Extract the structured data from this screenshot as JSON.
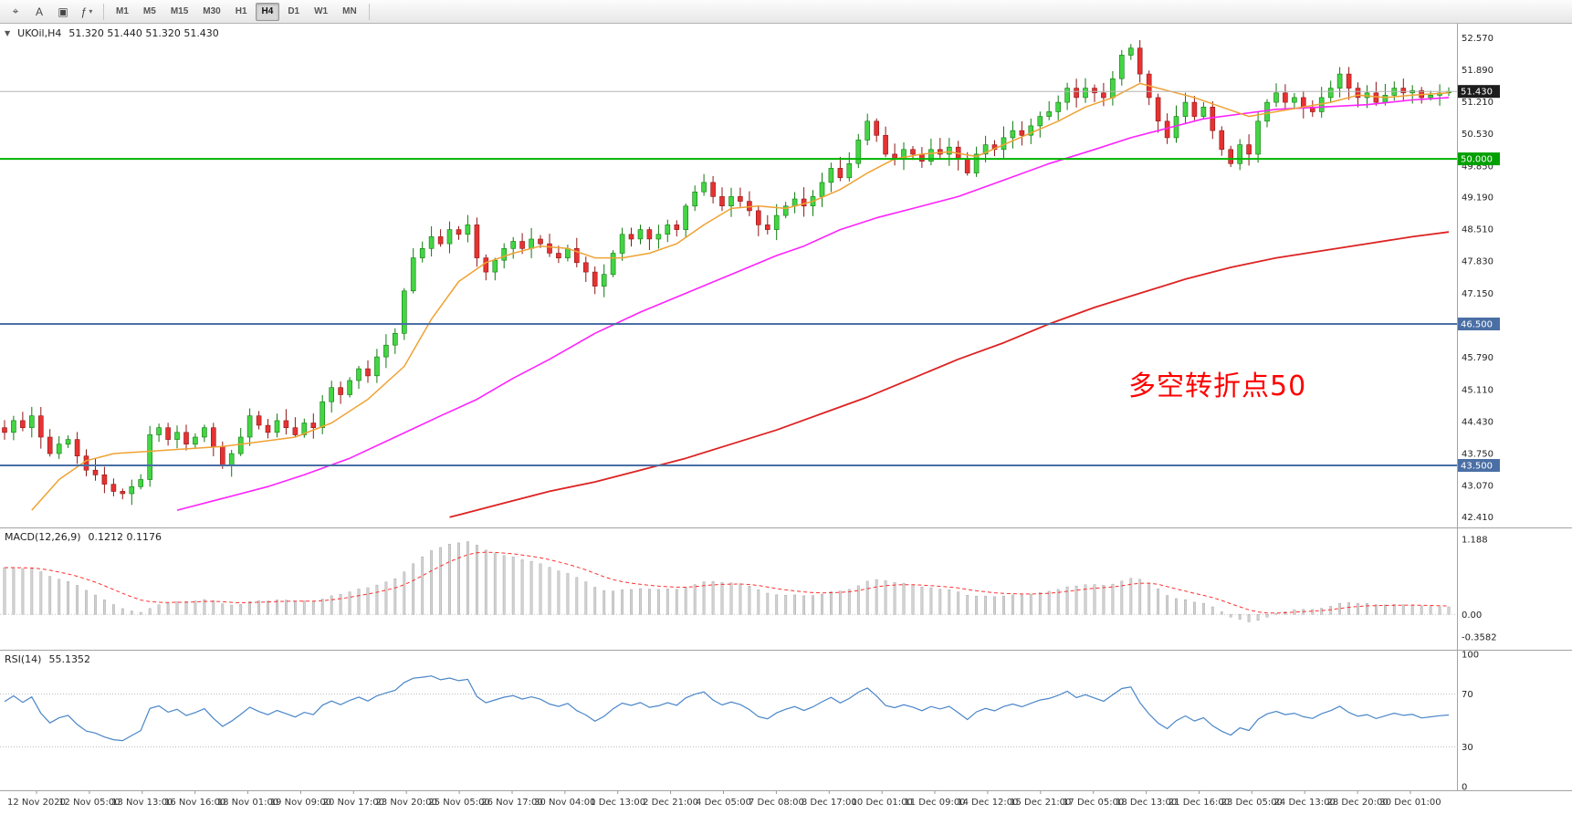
{
  "toolbar": {
    "tool_buttons": [
      {
        "icon_name": "crosshair-icon",
        "glyph": "⌖"
      },
      {
        "icon_name": "text-label-icon",
        "glyph": "A"
      },
      {
        "icon_name": "text-box-icon",
        "glyph": "▣"
      },
      {
        "icon_name": "indicators-icon",
        "glyph": "ƒ"
      }
    ],
    "chevron": "▾",
    "timeframes": [
      "M1",
      "M5",
      "M15",
      "M30",
      "H1",
      "H4",
      "D1",
      "W1",
      "MN"
    ],
    "active_timeframe": "H4"
  },
  "main_chart": {
    "collapse_arrow": "▼",
    "symbol_period": "UKOil,H4",
    "ohlc": "51.320 51.440 51.320 51.430",
    "annotation": {
      "text": "多空转折点50",
      "color": "#ff0000"
    }
  },
  "chart_data": {
    "type": "candlestick",
    "symbol": "UKOil",
    "timeframe": "H4",
    "y_domain": [
      42.3,
      52.75
    ],
    "first_open": 44.3,
    "closes": [
      44.2,
      44.45,
      44.3,
      44.55,
      44.1,
      43.75,
      43.95,
      44.05,
      43.7,
      43.4,
      43.3,
      43.1,
      42.95,
      42.9,
      43.05,
      43.2,
      44.15,
      44.3,
      44.05,
      44.2,
      43.95,
      44.1,
      44.3,
      43.9,
      43.5,
      43.75,
      44.1,
      44.55,
      44.35,
      44.2,
      44.45,
      44.3,
      44.15,
      44.4,
      44.3,
      44.85,
      45.15,
      45.0,
      45.3,
      45.55,
      45.4,
      45.8,
      46.05,
      46.3,
      47.2,
      47.9,
      48.1,
      48.35,
      48.2,
      48.5,
      48.4,
      48.6,
      47.9,
      47.6,
      47.85,
      48.1,
      48.25,
      48.1,
      48.3,
      48.2,
      48.0,
      47.9,
      48.1,
      47.8,
      47.6,
      47.3,
      47.55,
      48.0,
      48.4,
      48.3,
      48.5,
      48.3,
      48.4,
      48.6,
      48.5,
      49.0,
      49.3,
      49.5,
      49.2,
      49.0,
      49.2,
      49.1,
      48.9,
      48.6,
      48.5,
      48.8,
      49.0,
      49.15,
      49.0,
      49.2,
      49.5,
      49.8,
      49.6,
      49.9,
      50.4,
      50.8,
      50.5,
      50.1,
      50.0,
      50.2,
      50.1,
      49.95,
      50.2,
      50.1,
      50.25,
      50.0,
      49.7,
      50.1,
      50.3,
      50.2,
      50.45,
      50.6,
      50.5,
      50.7,
      50.9,
      51.0,
      51.2,
      51.5,
      51.3,
      51.5,
      51.4,
      51.3,
      51.7,
      52.2,
      52.35,
      51.8,
      51.3,
      50.8,
      50.45,
      50.9,
      51.2,
      50.9,
      51.1,
      50.6,
      50.2,
      49.9,
      50.3,
      50.1,
      50.8,
      51.2,
      51.4,
      51.2,
      51.3,
      51.1,
      51.0,
      51.3,
      51.5,
      51.8,
      51.5,
      51.3,
      51.4,
      51.2,
      51.35,
      51.5,
      51.4,
      51.45,
      51.3,
      51.35,
      51.4,
      51.43
    ],
    "ma_fast": {
      "name": "fast moving average",
      "anchors": [
        [
          3,
          42.55
        ],
        [
          6,
          43.2
        ],
        [
          9,
          43.6
        ],
        [
          12,
          43.75
        ],
        [
          16,
          43.8
        ],
        [
          20,
          43.85
        ],
        [
          24,
          43.9
        ],
        [
          28,
          44.0
        ],
        [
          32,
          44.1
        ],
        [
          36,
          44.4
        ],
        [
          40,
          44.9
        ],
        [
          44,
          45.6
        ],
        [
          47,
          46.6
        ],
        [
          50,
          47.4
        ],
        [
          53,
          47.8
        ],
        [
          56,
          48.0
        ],
        [
          59,
          48.15
        ],
        [
          62,
          48.1
        ],
        [
          65,
          47.9
        ],
        [
          68,
          47.9
        ],
        [
          71,
          48.0
        ],
        [
          74,
          48.2
        ],
        [
          77,
          48.6
        ],
        [
          80,
          48.95
        ],
        [
          83,
          49.0
        ],
        [
          86,
          48.95
        ],
        [
          89,
          49.1
        ],
        [
          92,
          49.35
        ],
        [
          95,
          49.7
        ],
        [
          98,
          50.0
        ],
        [
          101,
          50.1
        ],
        [
          104,
          50.15
        ],
        [
          107,
          50.05
        ],
        [
          110,
          50.3
        ],
        [
          113,
          50.55
        ],
        [
          116,
          50.8
        ],
        [
          119,
          51.1
        ],
        [
          122,
          51.3
        ],
        [
          125,
          51.6
        ],
        [
          128,
          51.45
        ],
        [
          131,
          51.3
        ],
        [
          134,
          51.1
        ],
        [
          137,
          50.9
        ],
        [
          140,
          51.0
        ],
        [
          143,
          51.1
        ],
        [
          146,
          51.2
        ],
        [
          149,
          51.35
        ],
        [
          152,
          51.3
        ],
        [
          155,
          51.35
        ],
        [
          159,
          51.4
        ]
      ]
    },
    "ma_mid": {
      "name": "mid moving average",
      "anchors": [
        [
          19,
          42.55
        ],
        [
          24,
          42.8
        ],
        [
          29,
          43.05
        ],
        [
          33,
          43.3
        ],
        [
          38,
          43.65
        ],
        [
          43,
          44.1
        ],
        [
          48,
          44.55
        ],
        [
          52,
          44.9
        ],
        [
          56,
          45.35
        ],
        [
          60,
          45.75
        ],
        [
          65,
          46.3
        ],
        [
          70,
          46.75
        ],
        [
          75,
          47.15
        ],
        [
          80,
          47.55
        ],
        [
          85,
          47.95
        ],
        [
          88,
          48.15
        ],
        [
          92,
          48.5
        ],
        [
          96,
          48.75
        ],
        [
          100,
          48.95
        ],
        [
          105,
          49.2
        ],
        [
          110,
          49.55
        ],
        [
          115,
          49.9
        ],
        [
          120,
          50.2
        ],
        [
          124,
          50.45
        ],
        [
          128,
          50.65
        ],
        [
          132,
          50.85
        ],
        [
          136,
          50.95
        ],
        [
          140,
          51.05
        ],
        [
          145,
          51.1
        ],
        [
          150,
          51.15
        ],
        [
          155,
          51.25
        ],
        [
          159,
          51.3
        ]
      ]
    },
    "ma_slow": {
      "name": "slow moving average",
      "anchors": [
        [
          49,
          42.4
        ],
        [
          55,
          42.7
        ],
        [
          60,
          42.95
        ],
        [
          65,
          43.15
        ],
        [
          70,
          43.4
        ],
        [
          75,
          43.65
        ],
        [
          80,
          43.95
        ],
        [
          85,
          44.25
        ],
        [
          90,
          44.6
        ],
        [
          95,
          44.95
        ],
        [
          100,
          45.35
        ],
        [
          105,
          45.75
        ],
        [
          110,
          46.1
        ],
        [
          115,
          46.5
        ],
        [
          120,
          46.85
        ],
        [
          125,
          47.15
        ],
        [
          130,
          47.45
        ],
        [
          135,
          47.7
        ],
        [
          140,
          47.9
        ],
        [
          145,
          48.05
        ],
        [
          150,
          48.2
        ],
        [
          155,
          48.35
        ],
        [
          159,
          48.45
        ]
      ]
    },
    "bid_line": 51.43,
    "hlines": [
      {
        "value": 50.0,
        "color": "#00b300",
        "width": 2
      },
      {
        "value": 46.5,
        "color": "#4a6fa5",
        "width": 2
      },
      {
        "value": 43.5,
        "color": "#4a6fa5",
        "width": 2
      }
    ],
    "price_axis_ticks": [
      52.57,
      51.89,
      51.21,
      50.53,
      49.85,
      49.19,
      48.51,
      47.83,
      47.15,
      45.79,
      45.11,
      44.43,
      43.75,
      43.07,
      42.41
    ],
    "price_badges": [
      {
        "value": 51.43,
        "label": "51.430",
        "bg": "#1c1c1c"
      },
      {
        "value": 50.0,
        "label": "50.000",
        "bg": "#00a000"
      },
      {
        "value": 46.5,
        "label": "46.500",
        "bg": "#4a6fa5"
      },
      {
        "value": 43.5,
        "label": "43.500",
        "bg": "#4a6fa5"
      }
    ],
    "x_labels": [
      "12 Nov 2020",
      "12 Nov 05:00",
      "13 Nov 13:00",
      "16 Nov 16:00",
      "18 Nov 01:00",
      "19 Nov 09:00",
      "20 Nov 17:00",
      "23 Nov 20:00",
      "25 Nov 05:00",
      "26 Nov 17:00",
      "30 Nov 04:00",
      "1 Dec 13:00",
      "2 Dec 21:00",
      "4 Dec 05:00",
      "7 Dec 08:00",
      "8 Dec 17:00",
      "10 Dec 01:00",
      "11 Dec 09:00",
      "14 Dec 12:00",
      "15 Dec 21:00",
      "17 Dec 05:00",
      "18 Dec 13:00",
      "21 Dec 16:00",
      "23 Dec 05:00",
      "24 Dec 13:00",
      "28 Dec 20:00",
      "30 Dec 01:00"
    ],
    "macd": {
      "label": "MACD(12,26,9)",
      "values_text": "0.1212 0.1176",
      "fast": 12,
      "slow": 26,
      "signal_period": 9,
      "y_domain": [
        -0.5,
        1.3
      ],
      "ticks": [
        {
          "label": "1.188",
          "value": 1.188
        },
        {
          "label": "0.00",
          "value": 0
        },
        {
          "label": "-0.3582",
          "value": -0.3582
        }
      ]
    },
    "rsi": {
      "label": "RSI(14)",
      "value_text": "55.1352",
      "period": 14,
      "levels": [
        70,
        30
      ],
      "y_domain": [
        0,
        100
      ],
      "ticks": [
        100,
        70,
        30,
        0
      ]
    },
    "colors": {
      "up_fill": "#44d544",
      "up_stroke": "#0e7a0e",
      "down_fill": "#e63232",
      "down_stroke": "#8f1515",
      "ma_fast": "#efa233",
      "ma_mid": "#ff22ff",
      "ma_slow": "#dd2222",
      "bid_line": "#b4b4b4",
      "macd_hist": "#d2d2d2",
      "macd_hist_stroke": "#9d9d9d",
      "macd_signal": "#ff3030",
      "rsi_line": "#4a86c8"
    }
  }
}
